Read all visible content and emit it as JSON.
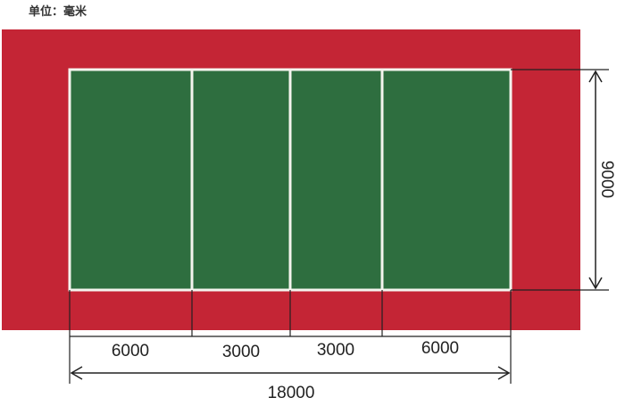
{
  "unit_label": "单位：毫米",
  "colors": {
    "surround": "#c42535",
    "court": "#2e6e3f",
    "lines": "#ffffff",
    "dimension": "#222222"
  },
  "court": {
    "length_label": "18000",
    "width_label": "9000",
    "segments": [
      "6000",
      "3000",
      "3000",
      "6000"
    ]
  }
}
